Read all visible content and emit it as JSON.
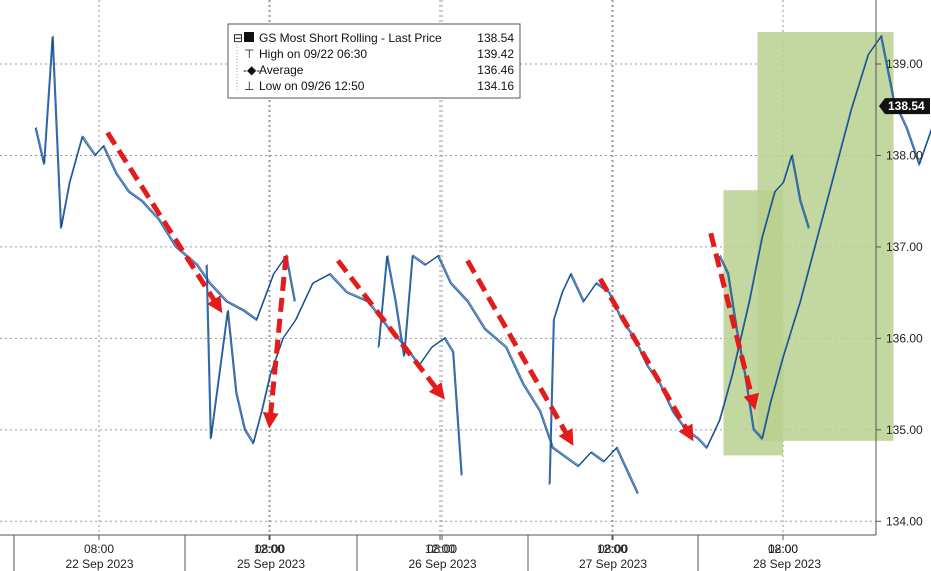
{
  "chart_data": {
    "type": "line",
    "title": "",
    "xlabel": "",
    "ylabel": "",
    "ylim": [
      133.85,
      139.7
    ],
    "y_ticks": [
      "134.00",
      "135.00",
      "136.00",
      "137.00",
      "138.00",
      "139.00"
    ],
    "grid": true,
    "legend_position": "top",
    "series": [
      {
        "name": "GS Most Short Rolling - Last Price",
        "last_value": "138.54",
        "color": "#1f6fcf",
        "segments": [
          {
            "day": "22 Sep 2023",
            "points": [
              [
                6.5,
                138.3
              ],
              [
                6.7,
                137.9
              ],
              [
                6.9,
                139.3
              ],
              [
                7.1,
                137.2
              ],
              [
                7.3,
                137.7
              ],
              [
                7.6,
                138.2
              ],
              [
                7.9,
                138.0
              ],
              [
                8.1,
                138.1
              ],
              [
                8.4,
                137.8
              ],
              [
                8.7,
                137.6
              ],
              [
                9.0,
                137.5
              ],
              [
                9.4,
                137.3
              ],
              [
                9.8,
                137.0
              ],
              [
                10.3,
                136.8
              ],
              [
                10.6,
                136.6
              ],
              [
                11.0,
                136.4
              ],
              [
                11.4,
                136.3
              ],
              [
                11.7,
                136.2
              ],
              [
                12.1,
                136.7
              ],
              [
                12.4,
                136.9
              ],
              [
                12.6,
                136.4
              ]
            ]
          },
          {
            "day": "25 Sep 2023",
            "points": [
              [
                6.5,
                136.8
              ],
              [
                6.6,
                134.9
              ],
              [
                6.8,
                135.6
              ],
              [
                7.0,
                136.3
              ],
              [
                7.2,
                135.4
              ],
              [
                7.4,
                135.0
              ],
              [
                7.6,
                134.85
              ],
              [
                7.8,
                135.2
              ],
              [
                8.0,
                135.6
              ],
              [
                8.3,
                136.0
              ],
              [
                8.6,
                136.2
              ],
              [
                9.0,
                136.6
              ],
              [
                9.4,
                136.7
              ],
              [
                9.8,
                136.5
              ],
              [
                10.3,
                136.4
              ],
              [
                10.8,
                136.1
              ],
              [
                11.2,
                135.9
              ],
              [
                11.5,
                135.7
              ],
              [
                11.8,
                135.9
              ],
              [
                12.1,
                136.0
              ],
              [
                12.3,
                135.85
              ],
              [
                12.5,
                134.5
              ]
            ]
          },
          {
            "day": "26 Sep 2023",
            "points": [
              [
                6.5,
                135.9
              ],
              [
                6.7,
                136.9
              ],
              [
                6.9,
                136.4
              ],
              [
                7.1,
                135.8
              ],
              [
                7.3,
                136.9
              ],
              [
                7.6,
                136.8
              ],
              [
                7.9,
                136.9
              ],
              [
                8.2,
                136.6
              ],
              [
                8.6,
                136.4
              ],
              [
                9.0,
                136.1
              ],
              [
                9.5,
                135.9
              ],
              [
                9.9,
                135.5
              ],
              [
                10.3,
                135.2
              ],
              [
                10.6,
                134.8
              ],
              [
                10.9,
                134.7
              ],
              [
                11.2,
                134.6
              ],
              [
                11.5,
                134.75
              ],
              [
                11.8,
                134.65
              ],
              [
                12.1,
                134.8
              ],
              [
                12.4,
                134.5
              ],
              [
                12.6,
                134.3
              ]
            ]
          },
          {
            "day": "27 Sep 2023",
            "points": [
              [
                6.5,
                134.4
              ],
              [
                6.6,
                136.2
              ],
              [
                6.8,
                136.5
              ],
              [
                7.0,
                136.7
              ],
              [
                7.3,
                136.4
              ],
              [
                7.6,
                136.6
              ],
              [
                7.9,
                136.5
              ],
              [
                8.2,
                136.2
              ],
              [
                8.5,
                136.0
              ],
              [
                8.8,
                135.7
              ],
              [
                9.1,
                135.5
              ],
              [
                9.4,
                135.2
              ],
              [
                9.7,
                135.0
              ],
              [
                10.0,
                134.9
              ],
              [
                10.2,
                134.8
              ],
              [
                10.5,
                135.1
              ],
              [
                10.8,
                135.6
              ],
              [
                11.2,
                136.4
              ],
              [
                11.5,
                137.1
              ],
              [
                11.8,
                137.6
              ],
              [
                12.0,
                137.7
              ],
              [
                12.2,
                138.0
              ],
              [
                12.4,
                137.5
              ],
              [
                12.6,
                137.2
              ]
            ]
          },
          {
            "day": "28 Sep 2023",
            "points": [
              [
                6.5,
                136.9
              ],
              [
                6.7,
                136.7
              ],
              [
                6.9,
                136.1
              ],
              [
                7.1,
                135.6
              ],
              [
                7.3,
                135.0
              ],
              [
                7.5,
                134.9
              ],
              [
                7.7,
                135.3
              ],
              [
                8.0,
                135.8
              ],
              [
                8.4,
                136.4
              ],
              [
                8.8,
                137.1
              ],
              [
                9.2,
                137.8
              ],
              [
                9.6,
                138.5
              ],
              [
                10.0,
                139.1
              ],
              [
                10.3,
                139.3
              ],
              [
                10.6,
                138.6
              ],
              [
                10.9,
                138.3
              ],
              [
                11.2,
                137.9
              ],
              [
                11.5,
                138.3
              ],
              [
                11.8,
                138.2
              ],
              [
                12.1,
                138.5
              ],
              [
                12.4,
                138.3
              ],
              [
                12.6,
                138.54
              ]
            ]
          }
        ]
      }
    ],
    "legend": {
      "items": [
        {
          "label": "GS Most Short Rolling - Last Price",
          "value": "138.54"
        },
        {
          "label": "High on 09/22 06:30",
          "value": "139.42"
        },
        {
          "label": "Average",
          "value": "136.46"
        },
        {
          "label": "Low on 09/26 12:50",
          "value": "134.16"
        }
      ]
    },
    "x_time_labels": [
      {
        "day": "22 Sep 2023",
        "hour": 8,
        "label": "08:00"
      },
      {
        "day": "22 Sep 2023",
        "hour": 12,
        "label": "12:00"
      },
      {
        "day": "25 Sep 2023",
        "hour": 8,
        "label": "08:00"
      },
      {
        "day": "25 Sep 2023",
        "hour": 12,
        "label": "12:00"
      },
      {
        "day": "26 Sep 2023",
        "hour": 8,
        "label": "08:00"
      },
      {
        "day": "26 Sep 2023",
        "hour": 12,
        "label": "12:00"
      },
      {
        "day": "27 Sep 2023",
        "hour": 8,
        "label": "08:00"
      },
      {
        "day": "27 Sep 2023",
        "hour": 12,
        "label": "12:00"
      },
      {
        "day": "28 Sep 2023",
        "hour": 8,
        "label": "08:00"
      },
      {
        "day": "28 Sep 2023",
        "hour": 12,
        "label": "12:00"
      }
    ],
    "x_day_labels": [
      "22 Sep 2023",
      "25 Sep 2023",
      "26 Sep 2023",
      "27 Sep 2023",
      "28 Sep 2023"
    ],
    "annotations": {
      "down_arrows": [
        {
          "day": "22 Sep 2023",
          "from": [
            8.2,
            138.25
          ],
          "to": [
            10.8,
            136.35
          ]
        },
        {
          "day": "22 Sep 2023",
          "from": [
            12.4,
            136.9
          ],
          "to": [
            8.0,
            135.1
          ],
          "to_day": "25 Sep 2023"
        },
        {
          "day": "25 Sep 2023",
          "from": [
            9.6,
            136.85
          ],
          "to": [
            12.0,
            135.4
          ]
        },
        {
          "day": "26 Sep 2023",
          "from": [
            8.6,
            136.85
          ],
          "to": [
            11.0,
            134.9
          ]
        },
        {
          "day": "27 Sep 2023",
          "from": [
            7.7,
            136.65
          ],
          "to": [
            9.8,
            134.95
          ]
        },
        {
          "day": "28 Sep 2023",
          "from": [
            6.3,
            137.15
          ],
          "to": [
            7.3,
            135.3
          ]
        }
      ],
      "highlight_boxes": [
        {
          "day": "27 Sep 2023",
          "x_range": [
            10.6,
            12.0
          ],
          "y_range": [
            134.72,
            137.62
          ]
        },
        {
          "day": "28 Sep 2023",
          "x_range": [
            7.4,
            10.6
          ],
          "y_range": [
            134.88,
            139.35
          ]
        }
      ],
      "arrow_color": "#e31b1b",
      "highlight_color": "#b8d08f"
    }
  }
}
